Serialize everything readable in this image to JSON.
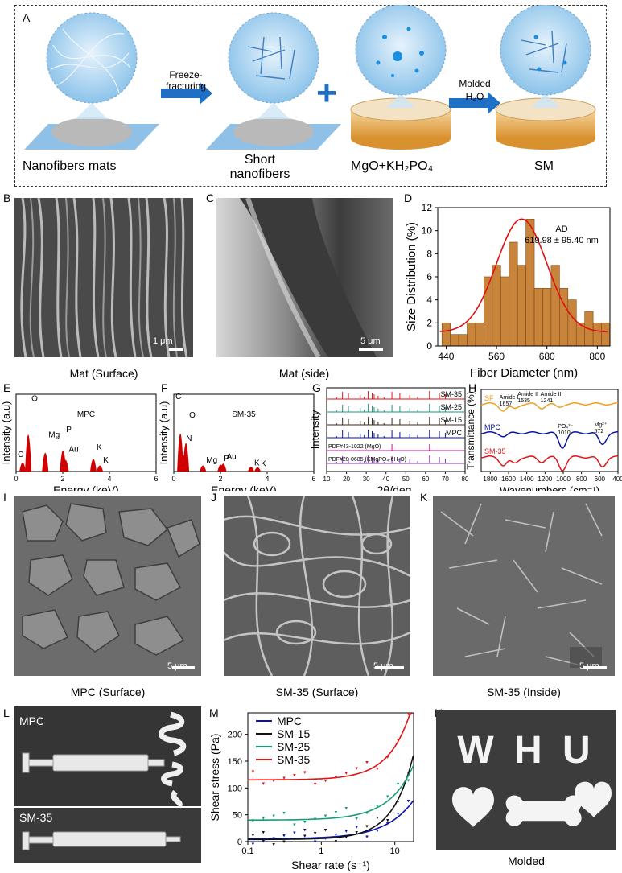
{
  "panel_letters": {
    "A": "A",
    "B": "B",
    "C": "C",
    "D": "D",
    "E": "E",
    "F": "F",
    "G": "G",
    "H": "H",
    "I": "I",
    "J": "J",
    "K": "K",
    "L": "L",
    "M": "M",
    "N": "N"
  },
  "schematic": {
    "step1_label": "Nanofibers mats",
    "arrow1_label_line1": "Freeze-",
    "arrow1_label_line2": "fracturing",
    "step2_label_line1": "Short",
    "step2_label_line2": "nanofibers",
    "plus": "+",
    "step3_label": "MgO+KH₂PO₄",
    "arrow2_label_line1": "Molded",
    "arrow2_label_line2": "H₂O",
    "step4_label": "SM"
  },
  "sem_row1": {
    "b_caption": "Mat (Surface)",
    "b_scale": "1 μm",
    "c_caption": "Mat (side)",
    "c_scale": "5 μm"
  },
  "sem_row3": {
    "i_caption": "MPC (Surface)",
    "j_caption": "SM-35 (Surface)",
    "k_caption": "SM-35 (Inside)",
    "scale": "5 μm"
  },
  "photos": {
    "l_top": "MPC",
    "l_bottom": "SM-35",
    "n_letters": "W H U",
    "n_caption": "Molded"
  },
  "colors": {
    "bar": "#c8843a",
    "fit": "#e01010",
    "mpc": "#0a14a0",
    "sm15": "#111111",
    "sm25": "#1a9a7a",
    "sm35": "#e01515",
    "sf": "#f0a020",
    "arrow": "#1f6fc4"
  },
  "chart_data": [
    {
      "id": "D",
      "type": "bar",
      "title": "",
      "xlabel": "Fiber Diameter (nm)",
      "ylabel": "Size Distribution (%)",
      "annotation_line1": "AD",
      "annotation_line2": "619.98 ± 95.40 nm",
      "xlim": [
        420,
        830
      ],
      "ylim": [
        0,
        12
      ],
      "xticks": [
        "440",
        "560",
        "680",
        "800"
      ],
      "yticks": [
        "0",
        "2",
        "4",
        "6",
        "8",
        "10",
        "12"
      ],
      "bin_width": 20,
      "bin_starts": [
        430,
        450,
        470,
        490,
        510,
        530,
        550,
        570,
        590,
        610,
        630,
        650,
        670,
        690,
        710,
        730,
        750,
        770,
        790,
        810
      ],
      "values": [
        2,
        1,
        1,
        2,
        2,
        6,
        7,
        6,
        9,
        7,
        11,
        5,
        5,
        7,
        5,
        4,
        2,
        3,
        2,
        2
      ],
      "fit": {
        "type": "gaussian",
        "mean": 619.98,
        "sd": 60,
        "peak": 11,
        "offset": 1.2
      }
    },
    {
      "id": "E",
      "type": "bar",
      "title": "MPC",
      "xlabel": "Energy (keV)",
      "ylabel": "Intensity (a.u)",
      "xlim": [
        0,
        6
      ],
      "xticks": [
        "0",
        "2",
        "4",
        "6"
      ],
      "peaks": [
        {
          "label": "C",
          "x": 0.28,
          "h": 0.18
        },
        {
          "label": "O",
          "x": 0.52,
          "h": 0.95
        },
        {
          "label": "Mg",
          "x": 1.25,
          "h": 0.45
        },
        {
          "label": "P",
          "x": 2.01,
          "h": 0.52
        },
        {
          "label": "Au",
          "x": 2.12,
          "h": 0.25
        },
        {
          "label": "K",
          "x": 3.31,
          "h": 0.28
        },
        {
          "label": "K",
          "x": 3.59,
          "h": 0.1
        }
      ]
    },
    {
      "id": "F",
      "type": "bar",
      "title": "SM-35",
      "xlabel": "Energy (keV)",
      "ylabel": "Intensity (a.u)",
      "xlim": [
        0,
        6
      ],
      "xticks": [
        "0",
        "2",
        "4",
        "6"
      ],
      "peaks": [
        {
          "label": "C",
          "x": 0.28,
          "h": 0.98
        },
        {
          "label": "N",
          "x": 0.39,
          "h": 0.4
        },
        {
          "label": "O",
          "x": 0.52,
          "h": 0.72
        },
        {
          "label": "Mg",
          "x": 1.25,
          "h": 0.1
        },
        {
          "label": "P",
          "x": 2.01,
          "h": 0.12
        },
        {
          "label": "Au",
          "x": 2.12,
          "h": 0.15
        },
        {
          "label": "K",
          "x": 3.31,
          "h": 0.06
        },
        {
          "label": "K",
          "x": 3.59,
          "h": 0.05
        }
      ]
    },
    {
      "id": "G",
      "type": "line",
      "xlabel": "2θ/deg.",
      "ylabel": "Intensity",
      "xlim": [
        10,
        80
      ],
      "xticks": [
        "10",
        "20",
        "30",
        "40",
        "50",
        "60",
        "70",
        "80"
      ],
      "series": [
        {
          "name": "SM-35",
          "color": "#e01515"
        },
        {
          "name": "SM-25",
          "color": "#1a9a7a"
        },
        {
          "name": "SM-15",
          "color": "#3a2a20"
        },
        {
          "name": "MPC",
          "color": "#0a14a0"
        },
        {
          "name": "PDF#43-1022 (MgO)",
          "color": "#d01090"
        },
        {
          "name": "PDF#20-0685 (KMgPO₄·6H₂O)",
          "color": "#8a30c0"
        }
      ]
    },
    {
      "id": "H",
      "type": "line",
      "xlabel": "Wavenumbers (cm⁻¹)",
      "ylabel": "Transmittance (%)",
      "xlim": [
        1900,
        400
      ],
      "xticks": [
        "1800",
        "1600",
        "1400",
        "1200",
        "1000",
        "800",
        "600",
        "400"
      ],
      "series": [
        {
          "name": "SF",
          "color": "#f0a020"
        },
        {
          "name": "MPC",
          "color": "#0a14a0"
        },
        {
          "name": "SM-35",
          "color": "#e01515"
        }
      ],
      "annotations": [
        "Amide I",
        "1657",
        "Amide II",
        "1535",
        "Amide III",
        "1241",
        "PO₄³⁻",
        "1010",
        "Mg²⁺",
        "572"
      ]
    },
    {
      "id": "M",
      "type": "scatter",
      "xlabel": "Shear rate (s⁻¹)",
      "ylabel": "Shear stress (Pa)",
      "xscale": "log",
      "xlim": [
        0.1,
        18
      ],
      "ylim": [
        0,
        240
      ],
      "xticks": [
        "0.1",
        "1",
        "10"
      ],
      "yticks": [
        "0",
        "50",
        "100",
        "150",
        "200"
      ],
      "series": [
        {
          "name": "MPC",
          "color": "#0a14a0",
          "tau0": 5,
          "k": 2.6,
          "n": 1.15
        },
        {
          "name": "SM-15",
          "color": "#111111",
          "tau0": 4,
          "k": 1.8,
          "n": 1.55
        },
        {
          "name": "SM-25",
          "color": "#1a9a7a",
          "tau0": 40,
          "k": 2.4,
          "n": 1.3
        },
        {
          "name": "SM-35",
          "color": "#e01515",
          "tau0": 115,
          "k": 2.2,
          "n": 1.45
        }
      ]
    }
  ]
}
